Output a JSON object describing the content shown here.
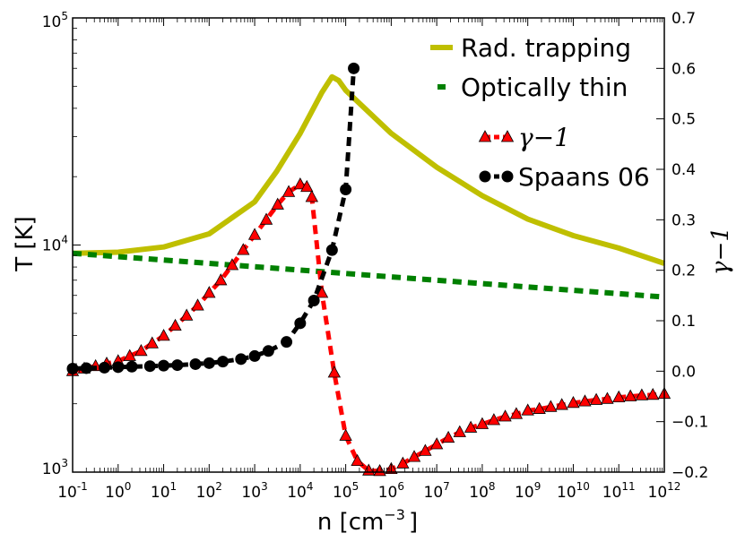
{
  "chart_data": {
    "type": "line",
    "xlabel": "n [cm",
    "xlabel_sup": "−3",
    "xlabel_end": "]",
    "ylabel_left": "T [K]",
    "ylabel_right": "γ−1",
    "x_scale": "log",
    "y_left_scale": "log",
    "xlim": [
      0.1,
      1000000000000.0
    ],
    "ylim_left": [
      1000,
      100000
    ],
    "ylim_right": [
      -0.2,
      0.7
    ],
    "grid": false,
    "legend_placement": "top-right",
    "x_ticks": [
      {
        "base": "10",
        "exp": "-1",
        "value": 0.1
      },
      {
        "base": "10",
        "exp": "0",
        "value": 1
      },
      {
        "base": "10",
        "exp": "1",
        "value": 10
      },
      {
        "base": "10",
        "exp": "2",
        "value": 100
      },
      {
        "base": "10",
        "exp": "3",
        "value": 1000
      },
      {
        "base": "10",
        "exp": "4",
        "value": 10000
      },
      {
        "base": "10",
        "exp": "5",
        "value": 100000
      },
      {
        "base": "10",
        "exp": "6",
        "value": 1000000
      },
      {
        "base": "10",
        "exp": "7",
        "value": 10000000
      },
      {
        "base": "10",
        "exp": "8",
        "value": 100000000
      },
      {
        "base": "10",
        "exp": "9",
        "value": 1000000000
      },
      {
        "base": "10",
        "exp": "10",
        "value": 10000000000
      },
      {
        "base": "10",
        "exp": "11",
        "value": 100000000000
      },
      {
        "base": "10",
        "exp": "12",
        "value": 1000000000000
      }
    ],
    "y_left_ticks": [
      {
        "base": "10",
        "exp": "3",
        "value": 1000
      },
      {
        "base": "10",
        "exp": "4",
        "value": 10000
      },
      {
        "base": "10",
        "exp": "5",
        "value": 100000
      }
    ],
    "y_right_ticks": [
      "−0.2",
      "−0.1",
      "0.0",
      "0.1",
      "0.2",
      "0.3",
      "0.4",
      "0.5",
      "0.6",
      "0.7"
    ],
    "y_right_tick_values": [
      -0.2,
      -0.1,
      0.0,
      0.1,
      0.2,
      0.3,
      0.4,
      0.5,
      0.6,
      0.7
    ],
    "series": [
      {
        "name": "Rad. trapping",
        "axis": "left",
        "color": "#bfbf00",
        "style": "solid",
        "points": [
          [
            0.1,
            9200
          ],
          [
            1,
            9300
          ],
          [
            10,
            9800
          ],
          [
            100,
            11200
          ],
          [
            1000,
            15500
          ],
          [
            3000,
            21000
          ],
          [
            10000,
            31000
          ],
          [
            30000,
            47000
          ],
          [
            50000,
            55000
          ],
          [
            70000,
            53000
          ],
          [
            100000,
            48000
          ],
          [
            1000000,
            31000
          ],
          [
            10000000,
            22000
          ],
          [
            100000000,
            16500
          ],
          [
            1000000000,
            13000
          ],
          [
            10000000000,
            11000
          ],
          [
            100000000000,
            9700
          ],
          [
            1000000000000,
            8300
          ]
        ]
      },
      {
        "name": "Optically thin",
        "axis": "left",
        "color": "#008000",
        "style": "dashed",
        "points": [
          [
            0.1,
            9200
          ],
          [
            1000000000000,
            5900
          ]
        ]
      },
      {
        "name": "γ−1",
        "axis": "right",
        "color": "#ff0000",
        "marker": "triangle",
        "x": [
          0.1,
          0.18,
          0.32,
          0.56,
          1,
          1.8,
          3.2,
          5.6,
          10,
          18,
          32,
          56,
          100,
          180,
          320,
          560,
          1000,
          1800,
          3200,
          5600,
          10000,
          14000,
          18000,
          30000,
          56000,
          100000,
          180000,
          320000,
          560000,
          1000000,
          1800000,
          3200000,
          5600000,
          10000000,
          18000000,
          32000000,
          56000000,
          100000000,
          180000000,
          320000000,
          560000000,
          1000000000,
          1800000000,
          3200000000,
          5600000000,
          10000000000,
          18000000000,
          32000000000,
          56000000000,
          100000000000,
          180000000000,
          320000000000,
          560000000000,
          1000000000000
        ],
        "values": [
          0.0,
          0.005,
          0.01,
          0.015,
          0.02,
          0.03,
          0.04,
          0.055,
          0.07,
          0.09,
          0.11,
          0.13,
          0.155,
          0.18,
          0.21,
          0.24,
          0.27,
          0.3,
          0.33,
          0.355,
          0.37,
          0.365,
          0.345,
          0.155,
          -0.003,
          -0.128,
          -0.178,
          -0.197,
          -0.198,
          -0.194,
          -0.183,
          -0.17,
          -0.158,
          -0.145,
          -0.132,
          -0.121,
          -0.112,
          -0.105,
          -0.097,
          -0.09,
          -0.085,
          -0.078,
          -0.075,
          -0.071,
          -0.067,
          -0.063,
          -0.06,
          -0.057,
          -0.055,
          -0.052,
          -0.05,
          -0.048,
          -0.047,
          -0.045
        ]
      },
      {
        "name": "Spaans 06",
        "axis": "right",
        "color": "#000000",
        "marker": "circle",
        "x": [
          0.1,
          0.2,
          0.5,
          1,
          2,
          5,
          10,
          20,
          50,
          100,
          200,
          500,
          1000,
          2000,
          5000,
          10000,
          20000,
          50000,
          100000,
          150000
        ],
        "values": [
          0.005,
          0.006,
          0.007,
          0.008,
          0.009,
          0.01,
          0.011,
          0.012,
          0.014,
          0.016,
          0.019,
          0.024,
          0.03,
          0.04,
          0.058,
          0.095,
          0.14,
          0.24,
          0.36,
          0.6
        ]
      }
    ]
  }
}
